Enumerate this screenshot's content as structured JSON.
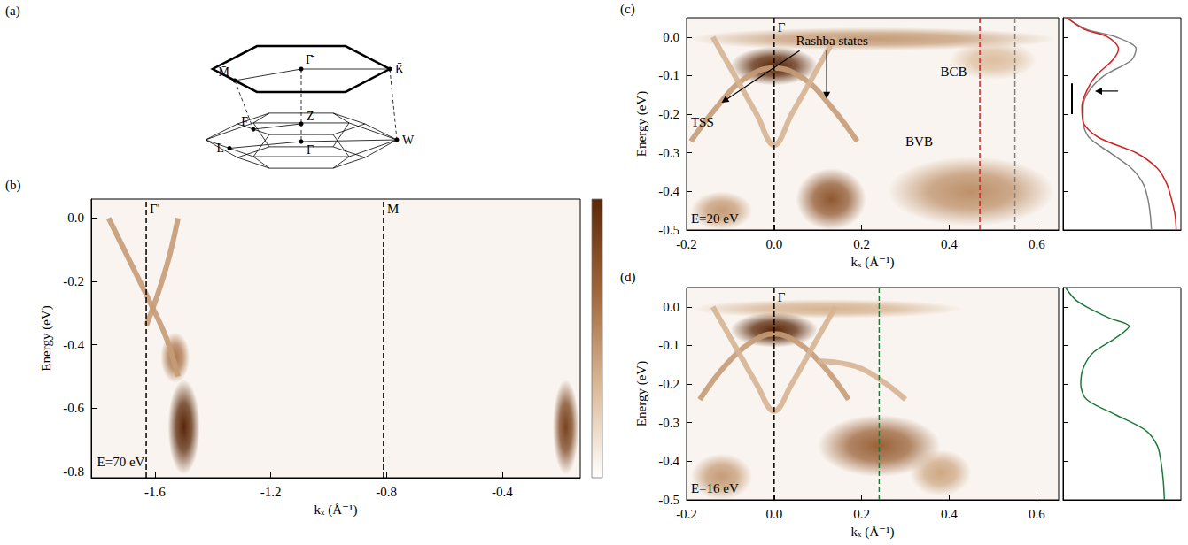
{
  "diagram": {
    "panel": "(a)",
    "surface_points": [
      "Γ̄",
      "M̄",
      "K̄"
    ],
    "bulk_points": [
      "Z",
      "Γ",
      "F",
      "L",
      "W"
    ]
  },
  "colormap": [
    "#ffffff",
    "#d9b896",
    "#a0673c",
    "#5a2708"
  ],
  "chart_data": [
    {
      "panel": "(b)",
      "type": "intensity_map",
      "x_label": "kₓ (Å⁻¹)",
      "y_label": "Energy (eV)",
      "xlim": [
        -1.82,
        -0.13
      ],
      "xticks": [
        -1.6,
        -1.2,
        -0.8,
        -0.4
      ],
      "ylim": [
        -0.82,
        0.06
      ],
      "yticks": [
        {
          "value": 0,
          "label": "0.0"
        },
        -0.2,
        -0.4,
        -0.6,
        -0.8
      ],
      "colorbar": {
        "range": [
          0,
          1
        ]
      },
      "vlines": [
        {
          "k": -1.63,
          "label": "Γ'",
          "color": "#000000"
        },
        {
          "k": -0.81,
          "label": "M",
          "color": "#000000"
        }
      ],
      "spots": [
        {
          "k": -1.5,
          "E": -0.66,
          "dk": 0.055,
          "dE": 0.15,
          "intensity": 1.0
        },
        {
          "k": -1.53,
          "E": -0.44,
          "dk": 0.05,
          "dE": 0.08,
          "intensity": 0.6
        },
        {
          "k": -0.18,
          "E": -0.66,
          "dk": 0.045,
          "dE": 0.15,
          "intensity": 0.85
        }
      ],
      "bands": [
        {
          "k": [
            -1.76,
            -1.69,
            -1.62,
            -1.56,
            -1.52
          ],
          "E": [
            0,
            -0.13,
            -0.26,
            -0.38,
            -0.5
          ],
          "intensity": 0.45
        },
        {
          "k": [
            -1.52,
            -1.55,
            -1.59,
            -1.63
          ],
          "E": [
            0,
            -0.12,
            -0.24,
            -0.34
          ],
          "intensity": 0.45
        }
      ],
      "annotations": [
        {
          "text": "E=70 eV",
          "k": -1.8,
          "E": -0.77
        }
      ]
    },
    {
      "panel": "(c)",
      "type": "intensity_map",
      "x_label": "kₓ (Å⁻¹)",
      "y_label": "Energy (eV)",
      "xlim": [
        -0.2,
        0.65
      ],
      "xticks": [
        -0.2,
        {
          "value": 0,
          "label": "0.0"
        },
        0.2,
        0.4,
        0.6
      ],
      "ylim": [
        -0.5,
        0.05
      ],
      "yticks": [
        {
          "value": 0,
          "label": "0.0"
        },
        -0.1,
        -0.2,
        -0.3,
        -0.4,
        -0.5
      ],
      "intensity_range": [
        0,
        1
      ],
      "vlines": [
        {
          "k": 0,
          "label": "Γ",
          "color": "#000000"
        }
      ],
      "spots": [
        {
          "k": 0.225,
          "E": -0.005,
          "dk": 0.42,
          "dE": 0.03,
          "intensity": 0.45
        },
        {
          "k": 0,
          "E": -0.075,
          "dk": 0.1,
          "dE": 0.05,
          "intensity": 1.0
        },
        {
          "k": 0.5,
          "E": -0.06,
          "dk": 0.1,
          "dE": 0.05,
          "intensity": 0.3
        },
        {
          "k": 0.13,
          "E": -0.42,
          "dk": 0.08,
          "dE": 0.08,
          "intensity": 0.75
        },
        {
          "k": 0.45,
          "E": -0.4,
          "dk": 0.19,
          "dE": 0.09,
          "intensity": 0.5
        },
        {
          "k": -0.12,
          "E": -0.45,
          "dk": 0.07,
          "dE": 0.05,
          "intensity": 0.45
        }
      ],
      "bands": [
        {
          "k": [
            -0.19,
            -0.13,
            -0.07,
            0,
            0.07,
            0.13,
            0.19
          ],
          "E": [
            -0.27,
            -0.18,
            -0.11,
            -0.08,
            -0.11,
            -0.18,
            -0.27
          ],
          "intensity": 0.45
        },
        {
          "k": [
            -0.14,
            -0.09,
            -0.04,
            0,
            0.04,
            0.09,
            0.14
          ],
          "E": [
            0,
            -0.1,
            -0.2,
            -0.28,
            -0.2,
            -0.1,
            0
          ],
          "intensity": 0.35
        }
      ],
      "annotations": [
        {
          "text": "Rashba states",
          "k": 0.05,
          "E": -0.01,
          "arrows": [
            [
              -0.12,
              -0.17
            ],
            [
              0.12,
              -0.16
            ]
          ]
        },
        {
          "text": "TSS",
          "k": -0.19,
          "E": -0.22
        },
        {
          "text": "BCB",
          "k": 0.38,
          "E": -0.09
        },
        {
          "text": "BVB",
          "k": 0.3,
          "E": -0.27
        },
        {
          "text": "E=20 eV",
          "k": -0.19,
          "E": -0.47
        }
      ],
      "edc": {
        "xlim": [
          0,
          1
        ],
        "tick_labels": false,
        "bracket_E": [
          -0.12,
          -0.2
        ],
        "arrow_E": -0.14,
        "series": [
          {
            "k": 0.55,
            "color": "#808080",
            "E": [
              0.05,
              0.02,
              0,
              -0.03,
              -0.06,
              -0.1,
              -0.14,
              -0.18,
              -0.22,
              -0.26,
              -0.3,
              -0.34,
              -0.38,
              -0.42,
              -0.46,
              -0.5
            ],
            "intensity": [
              0.03,
              0.2,
              0.45,
              0.62,
              0.58,
              0.35,
              0.22,
              0.17,
              0.17,
              0.22,
              0.4,
              0.58,
              0.68,
              0.72,
              0.74,
              0.75
            ]
          },
          {
            "k": 0.47,
            "color": "#d62020",
            "E": [
              0.05,
              0.02,
              0,
              -0.03,
              -0.06,
              -0.1,
              -0.14,
              -0.18,
              -0.22,
              -0.26,
              -0.3,
              -0.34,
              -0.38,
              -0.42,
              -0.46,
              -0.5
            ],
            "intensity": [
              0.03,
              0.18,
              0.38,
              0.47,
              0.42,
              0.28,
              0.2,
              0.16,
              0.17,
              0.3,
              0.62,
              0.8,
              0.88,
              0.92,
              0.95,
              0.96
            ]
          }
        ]
      }
    },
    {
      "panel": "(d)",
      "type": "intensity_map",
      "x_label": "kₓ (Å⁻¹)",
      "y_label": "Energy (eV)",
      "xlim": [
        -0.2,
        0.65
      ],
      "xticks": [
        -0.2,
        {
          "value": 0,
          "label": "0.0"
        },
        0.2,
        0.4,
        0.6
      ],
      "ylim": [
        -0.5,
        0.05
      ],
      "yticks": [
        {
          "value": 0,
          "label": "0.0"
        },
        -0.1,
        -0.2,
        -0.3,
        -0.4,
        -0.5
      ],
      "intensity_range": [
        0,
        1
      ],
      "vlines": [
        {
          "k": 0,
          "label": "Γ",
          "color": "#000000"
        }
      ],
      "spots": [
        {
          "k": 0.12,
          "E": -0.005,
          "dk": 0.31,
          "dE": 0.025,
          "intensity": 0.35
        },
        {
          "k": 0,
          "E": -0.06,
          "dk": 0.1,
          "dE": 0.045,
          "intensity": 1.0
        },
        {
          "k": 0.24,
          "E": -0.36,
          "dk": 0.14,
          "dE": 0.08,
          "intensity": 0.7
        },
        {
          "k": -0.12,
          "E": -0.44,
          "dk": 0.07,
          "dE": 0.06,
          "intensity": 0.45
        },
        {
          "k": 0.38,
          "E": -0.43,
          "dk": 0.07,
          "dE": 0.06,
          "intensity": 0.4
        }
      ],
      "bands": [
        {
          "k": [
            -0.17,
            -0.11,
            -0.05,
            0,
            0.05,
            0.11,
            0.17
          ],
          "E": [
            -0.24,
            -0.15,
            -0.09,
            -0.07,
            -0.09,
            -0.15,
            -0.24
          ],
          "intensity": 0.45
        },
        {
          "k": [
            -0.14,
            -0.09,
            -0.04,
            0,
            0.04,
            0.09,
            0.14
          ],
          "E": [
            0,
            -0.1,
            -0.2,
            -0.27,
            -0.2,
            -0.1,
            0
          ],
          "intensity": 0.35
        },
        {
          "k": [
            0.1,
            0.2,
            0.3
          ],
          "E": [
            -0.14,
            -0.16,
            -0.24
          ],
          "intensity": 0.35
        }
      ],
      "annotations": [
        {
          "text": "E=16 eV",
          "k": -0.19,
          "E": -0.47
        }
      ],
      "edc": {
        "xlim": [
          0,
          1
        ],
        "tick_labels": false,
        "series": [
          {
            "k": 0.24,
            "color": "#1f7a3a",
            "E": [
              0.05,
              0.02,
              0,
              -0.03,
              -0.05,
              -0.08,
              -0.12,
              -0.16,
              -0.2,
              -0.24,
              -0.28,
              -0.32,
              -0.36,
              -0.4,
              -0.45,
              -0.5
            ],
            "intensity": [
              0.02,
              0.1,
              0.2,
              0.4,
              0.56,
              0.45,
              0.25,
              0.17,
              0.15,
              0.2,
              0.45,
              0.7,
              0.8,
              0.83,
              0.85,
              0.86
            ]
          }
        ]
      }
    }
  ]
}
